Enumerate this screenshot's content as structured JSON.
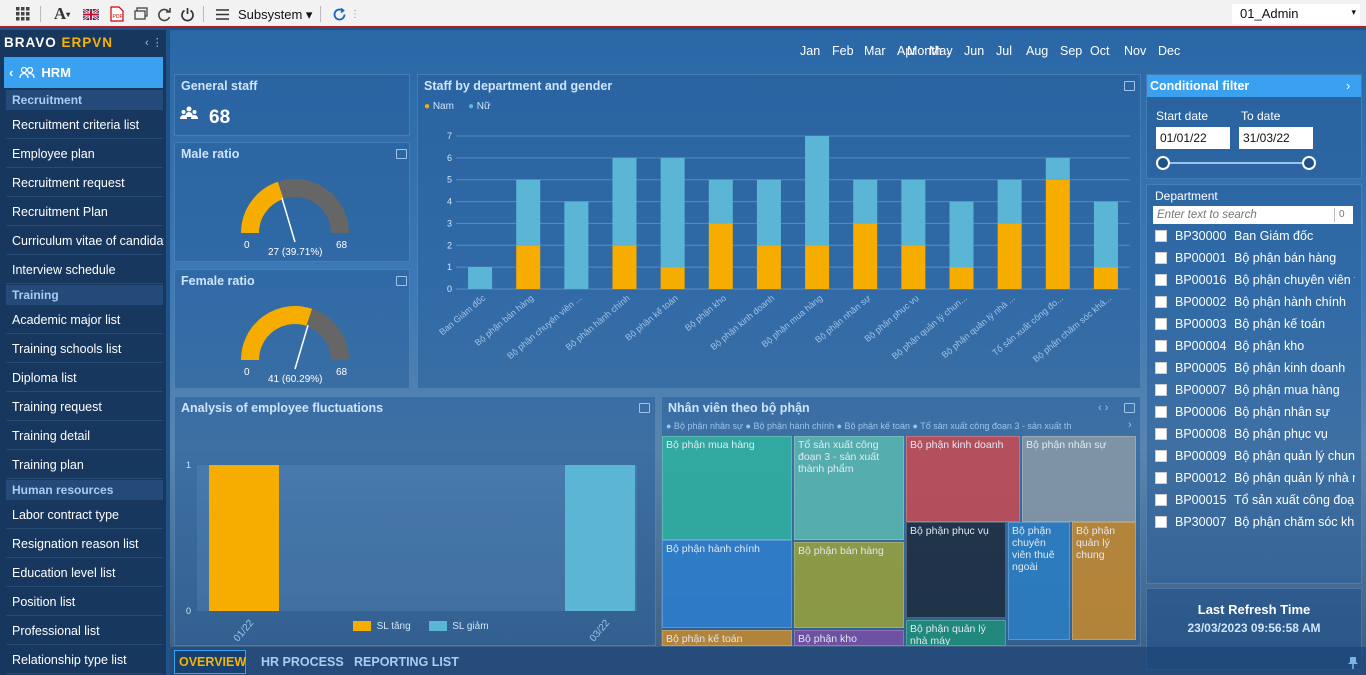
{
  "toolbar": {
    "subsystem_label": "Subsystem",
    "user": "01_Admin"
  },
  "sidebar": {
    "brand_a": "BRAVO",
    "brand_b": "ERPVN",
    "module": "HRM",
    "groups": {
      "recruitment": "Recruitment",
      "training": "Training",
      "hr": "Human resources"
    },
    "recruitment_items": [
      "Recruitment criteria list",
      "Employee plan",
      "Recruitment request",
      "Recruitment Plan",
      "Curriculum vitae of candidate",
      "Interview schedule"
    ],
    "training_items": [
      "Academic major list",
      "Training schools list",
      "Diploma list",
      "Training request",
      "Training detail",
      "Training plan"
    ],
    "hr_items": [
      "Labor contract type",
      "Resignation reason list",
      "Education level list",
      "Position list",
      "Professional list",
      "Relationship type list"
    ]
  },
  "period": {
    "label": "Month",
    "months": [
      "Jan",
      "Feb",
      "Mar",
      "Apr",
      "May",
      "Jun",
      "Jul",
      "Aug",
      "Sep",
      "Oct",
      "Nov",
      "Dec"
    ]
  },
  "general_staff": {
    "title": "General staff",
    "value": "68"
  },
  "male_ratio": {
    "title": "Male ratio",
    "min": "0",
    "max": "68",
    "value_text": "27 (39.71%)",
    "value": 27
  },
  "female_ratio": {
    "title": "Female ratio",
    "min": "0",
    "max": "68",
    "value_text": "41 (60.29%)",
    "value": 41
  },
  "staff_chart": {
    "title": "Staff by department and gender",
    "legend_male": "Nam",
    "legend_female": "Nữ"
  },
  "fluct_chart": {
    "title": "Analysis of employee fluctuations",
    "legend_inc": "SL tăng",
    "legend_dec": "SL giảm"
  },
  "treemap": {
    "title": "Nhân viên theo bộ phận",
    "legend_text": "● Bộ phận nhân sự  ● Bộ phận hành chính  ● Bộ phận kế toán  ● Tổ sản xuất công đoạn 3 - sản xuất th",
    "cells": [
      "Bộ phận mua hàng",
      "Tổ sản xuất công đoạn 3 - sản xuất thành phẩm",
      "Bộ phận kinh doanh",
      "Bộ phận nhân sự",
      "Bộ phận hành chính",
      "Bộ phận bán hàng",
      "Bộ phận phục vụ",
      "Bộ phận chuyên viên thuê ngoài",
      "Bộ phận quản lý chung",
      "Bộ phận kế toán",
      "Bộ phận kho",
      "Bộ phận quản lý nhà máy"
    ]
  },
  "filter": {
    "title": "Conditional filter",
    "start_label": "Start date",
    "end_label": "To date",
    "start_value": "01/01/22",
    "end_value": "31/03/22",
    "dept_label": "Department",
    "search_placeholder": "Enter text to search",
    "search_count": "0",
    "departments": [
      {
        "code": "BP30000",
        "name": "Ban Giám đốc"
      },
      {
        "code": "BP00001",
        "name": "Bộ phận bán hàng"
      },
      {
        "code": "BP00016",
        "name": "Bộ phận chuyên viên t"
      },
      {
        "code": "BP00002",
        "name": "Bộ phận hành chính"
      },
      {
        "code": "BP00003",
        "name": "Bộ phận kế toán"
      },
      {
        "code": "BP00004",
        "name": "Bộ phận kho"
      },
      {
        "code": "BP00005",
        "name": "Bộ phận kinh doanh"
      },
      {
        "code": "BP00007",
        "name": "Bộ phận mua hàng"
      },
      {
        "code": "BP00006",
        "name": "Bộ phận nhân sự"
      },
      {
        "code": "BP00008",
        "name": "Bộ phận phục vụ"
      },
      {
        "code": "BP00009",
        "name": "Bộ phận quản lý chung"
      },
      {
        "code": "BP00012",
        "name": "Bộ phận quản lý nhà m"
      },
      {
        "code": "BP00015",
        "name": "Tổ sản xuất công đoạn"
      },
      {
        "code": "BP30007",
        "name": "Bộ phận chăm sóc khá"
      }
    ],
    "refresh_title": "Last Refresh Time",
    "refresh_time": "23/03/2023 09:56:58 AM"
  },
  "tabs": [
    "OVERVIEW",
    "HR PROCESS",
    "REPORTING LIST"
  ],
  "colors": {
    "male": "#f6ad00",
    "female": "#5bb6d6",
    "accent": "#3aa0f0"
  },
  "chart_data": [
    {
      "type": "bar",
      "stacked": true,
      "title": "Staff by department and gender",
      "categories": [
        "Ban Giám đốc",
        "Bộ phận bán hàng",
        "Bộ phận chuyên viên ...",
        "Bộ phận hành chính",
        "Bộ phận kế toán",
        "Bộ phận kho",
        "Bộ phận kinh doanh",
        "Bộ phận mua hàng",
        "Bộ phận nhân sự",
        "Bộ phận phục vụ",
        "Bộ phận quản lý chun...",
        "Bộ phận quản lý nhà ...",
        "Tổ sản xuất công đo...",
        "Bộ phận chăm sóc khá..."
      ],
      "series": [
        {
          "name": "Nam",
          "values": [
            0,
            2,
            0,
            2,
            1,
            3,
            2,
            2,
            3,
            2,
            1,
            3,
            5,
            1
          ]
        },
        {
          "name": "Nữ",
          "values": [
            1,
            3,
            4,
            4,
            5,
            2,
            3,
            5,
            2,
            3,
            3,
            2,
            1,
            3
          ]
        }
      ],
      "ylim": [
        0,
        7
      ],
      "yticks": [
        0,
        1,
        2,
        3,
        4,
        5,
        6,
        7
      ],
      "legend": "top-left"
    },
    {
      "type": "bar",
      "title": "Analysis of employee fluctuations",
      "categories": [
        "01/22",
        "03/22"
      ],
      "series": [
        {
          "name": "SL tăng",
          "values": [
            1,
            0
          ]
        },
        {
          "name": "SL giảm",
          "values": [
            0,
            1
          ]
        }
      ],
      "ylim": [
        0,
        1
      ],
      "yticks": [
        0,
        1
      ],
      "legend": "bottom"
    }
  ]
}
